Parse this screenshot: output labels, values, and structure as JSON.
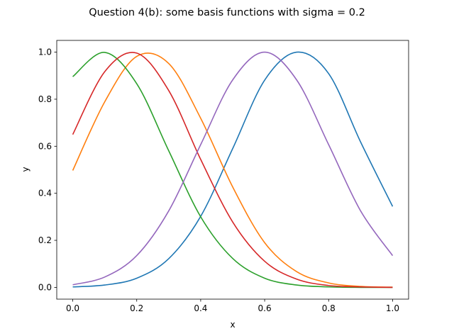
{
  "chart_data": {
    "type": "line",
    "title": "Question 4(b): some basis functions with sigma = 0.2",
    "xlabel": "x",
    "ylabel": "y",
    "xlim": [
      -0.05,
      1.05
    ],
    "ylim": [
      -0.05,
      1.05
    ],
    "xticks": [
      "0.0",
      "0.2",
      "0.4",
      "0.6",
      "0.8",
      "1.0"
    ],
    "yticks": [
      "0.0",
      "0.2",
      "0.4",
      "0.6",
      "0.8",
      "1.0"
    ],
    "grid": false,
    "legend": "none",
    "series": [
      {
        "color": "#1f77b4",
        "x": [
          0.0,
          0.1,
          0.2,
          0.3,
          0.4,
          0.5,
          0.6,
          0.7,
          0.8,
          0.9,
          1.0
        ],
        "y": [
          0.002,
          0.01,
          0.039,
          0.122,
          0.302,
          0.59,
          0.881,
          1.0,
          0.909,
          0.618,
          0.344
        ]
      },
      {
        "color": "#ff7f0e",
        "x": [
          0.0,
          0.1,
          0.2,
          0.3,
          0.4,
          0.5,
          0.6,
          0.7,
          0.8,
          0.9,
          1.0
        ],
        "y": [
          0.497,
          0.789,
          0.982,
          0.952,
          0.719,
          0.427,
          0.19,
          0.067,
          0.019,
          0.004,
          0.001
        ]
      },
      {
        "color": "#2ca02c",
        "x": [
          0.0,
          0.1,
          0.2,
          0.3,
          0.4,
          0.5,
          0.6,
          0.7,
          0.8,
          0.9,
          1.0
        ],
        "y": [
          0.896,
          0.999,
          0.866,
          0.581,
          0.3,
          0.123,
          0.039,
          0.01,
          0.002,
          0.0,
          0.0
        ]
      },
      {
        "color": "#d62728",
        "x": [
          0.0,
          0.1,
          0.2,
          0.3,
          0.4,
          0.5,
          0.6,
          0.7,
          0.8,
          0.9,
          1.0
        ],
        "y": [
          0.65,
          0.917,
          0.996,
          0.837,
          0.544,
          0.278,
          0.111,
          0.035,
          0.008,
          0.002,
          0.0
        ]
      },
      {
        "color": "#9467bd",
        "x": [
          0.0,
          0.1,
          0.2,
          0.3,
          0.4,
          0.5,
          0.6,
          0.7,
          0.8,
          0.9,
          1.0
        ],
        "y": [
          0.011,
          0.044,
          0.135,
          0.325,
          0.607,
          0.882,
          1.0,
          0.882,
          0.607,
          0.325,
          0.135
        ]
      }
    ]
  }
}
